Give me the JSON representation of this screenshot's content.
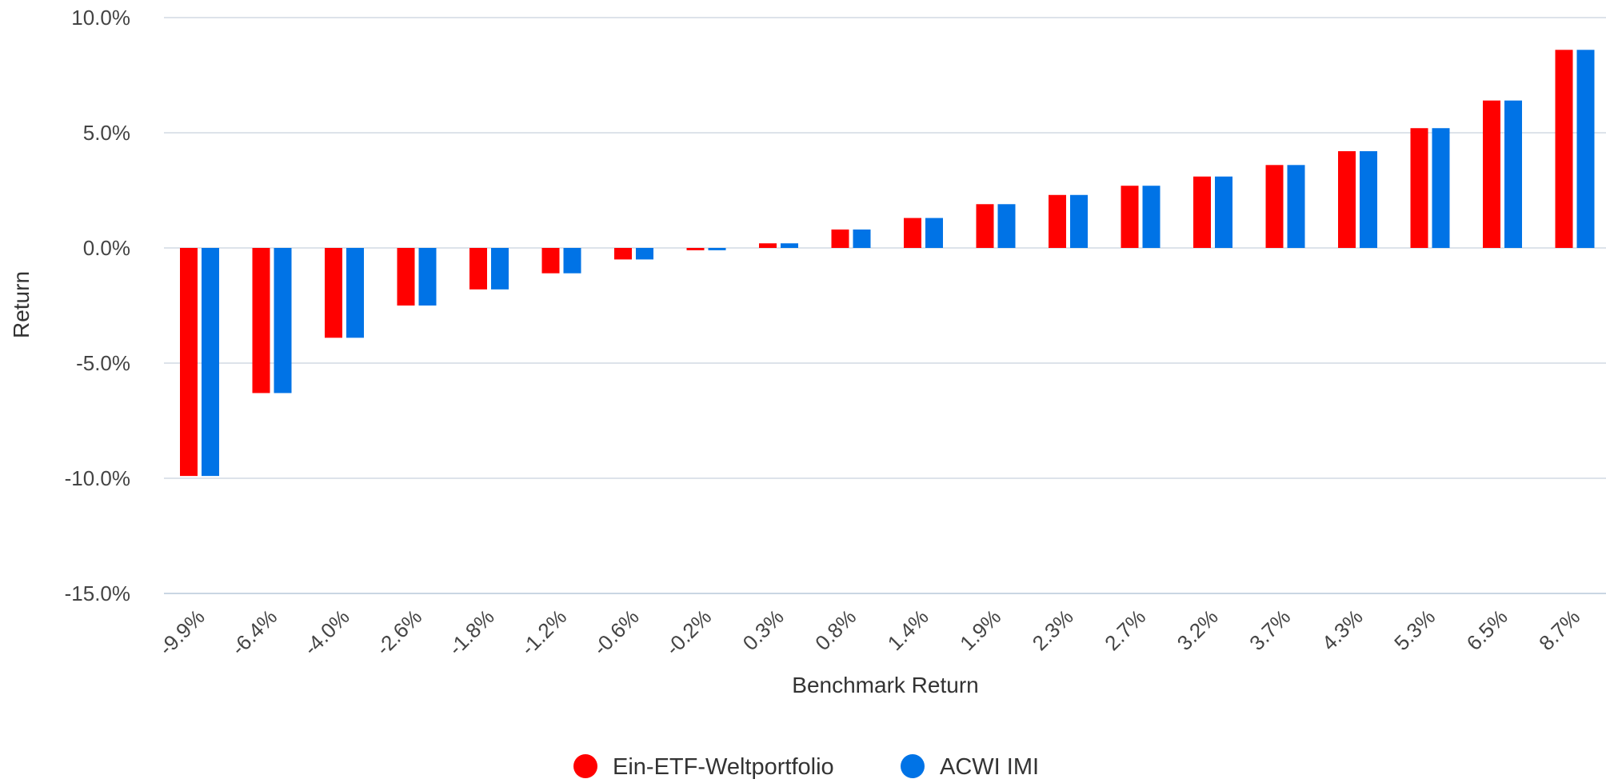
{
  "chart_data": {
    "type": "bar",
    "xlabel": "Benchmark Return",
    "ylabel": "Return",
    "ylim": [
      -15,
      10
    ],
    "yticks": [
      10,
      5,
      0,
      -5,
      -10,
      -15
    ],
    "ytick_labels": [
      "10.0%",
      "5.0%",
      "0.0%",
      "-5.0%",
      "-10.0%",
      "-15.0%"
    ],
    "grid": true,
    "legend_position": "bottom-center",
    "categories": [
      "-9.9%",
      "-6.4%",
      "-4.0%",
      "-2.6%",
      "-1.8%",
      "-1.2%",
      "-0.6%",
      "-0.2%",
      "0.3%",
      "0.8%",
      "1.4%",
      "1.9%",
      "2.3%",
      "2.7%",
      "3.2%",
      "3.7%",
      "4.3%",
      "5.3%",
      "6.5%",
      "8.7%"
    ],
    "series": [
      {
        "name": "Ein-ETF-Weltportfolio",
        "color": "#ff0000",
        "values": [
          -9.9,
          -6.3,
          -3.9,
          -2.5,
          -1.8,
          -1.1,
          -0.5,
          -0.1,
          0.2,
          0.8,
          1.3,
          1.9,
          2.3,
          2.7,
          3.1,
          3.6,
          4.2,
          5.2,
          6.4,
          8.6
        ]
      },
      {
        "name": "ACWI IMI",
        "color": "#0073e6",
        "values": [
          -9.9,
          -6.3,
          -3.9,
          -2.5,
          -1.8,
          -1.1,
          -0.5,
          -0.1,
          0.2,
          0.8,
          1.3,
          1.9,
          2.3,
          2.7,
          3.1,
          3.6,
          4.2,
          5.2,
          6.4,
          8.6
        ]
      }
    ],
    "colors": {
      "grid": "#dde3ea",
      "baseline": "#c9d6e3"
    }
  }
}
